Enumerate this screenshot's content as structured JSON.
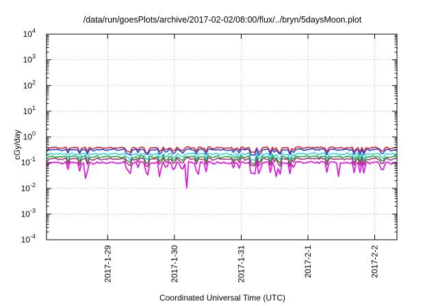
{
  "chart_data": {
    "type": "line",
    "title": "/data/run/goesPlots/archive/2017-02-02/08:00/flux/../bryn/5daysMoon.plot",
    "xlabel": "Coordinated Universal Time (UTC)",
    "ylabel": "cGy/day",
    "yscale": "log",
    "ylim": [
      0.0001,
      10000
    ],
    "xlim": [
      "2017-01-28 02:00",
      "2017-02-02 08:00"
    ],
    "grid": true,
    "legend": "none",
    "y_ticks": [
      {
        "base": "10",
        "exp": "-4",
        "value": 0.0001
      },
      {
        "base": "10",
        "exp": "-3",
        "value": 0.001
      },
      {
        "base": "10",
        "exp": "-2",
        "value": 0.01
      },
      {
        "base": "10",
        "exp": "-1",
        "value": 0.1
      },
      {
        "base": "10",
        "exp": "0",
        "value": 1
      },
      {
        "base": "10",
        "exp": "1",
        "value": 10
      },
      {
        "base": "10",
        "exp": "2",
        "value": 100
      },
      {
        "base": "10",
        "exp": "3",
        "value": 1000
      },
      {
        "base": "10",
        "exp": "4",
        "value": 10000
      }
    ],
    "x_ticks": [
      {
        "label": "2017-1-29",
        "value": "2017-01-29 00:00"
      },
      {
        "label": "2017-1-30",
        "value": "2017-01-30 00:00"
      },
      {
        "label": "2017-1-31",
        "value": "2017-01-31 00:00"
      },
      {
        "label": "2017-2-1",
        "value": "2017-02-01 00:00"
      },
      {
        "label": "2017-2-2",
        "value": "2017-02-02 00:00"
      }
    ],
    "series": [
      {
        "color": "#e8212b",
        "base": 0.38,
        "dip_scale": 0.55
      },
      {
        "color": "#2244dd",
        "base": 0.32,
        "dip_scale": 0.6
      },
      {
        "color": "#2fd6d6",
        "base": 0.22,
        "dip_scale": 0.65
      },
      {
        "color": "#22a83a",
        "base": 0.17,
        "dip_scale": 0.7
      },
      {
        "color": "#a8327a",
        "base": 0.14,
        "dip_scale": 0.75
      },
      {
        "color": "#ee00ee",
        "base": 0.1,
        "dip_scale": 1.0
      }
    ]
  }
}
